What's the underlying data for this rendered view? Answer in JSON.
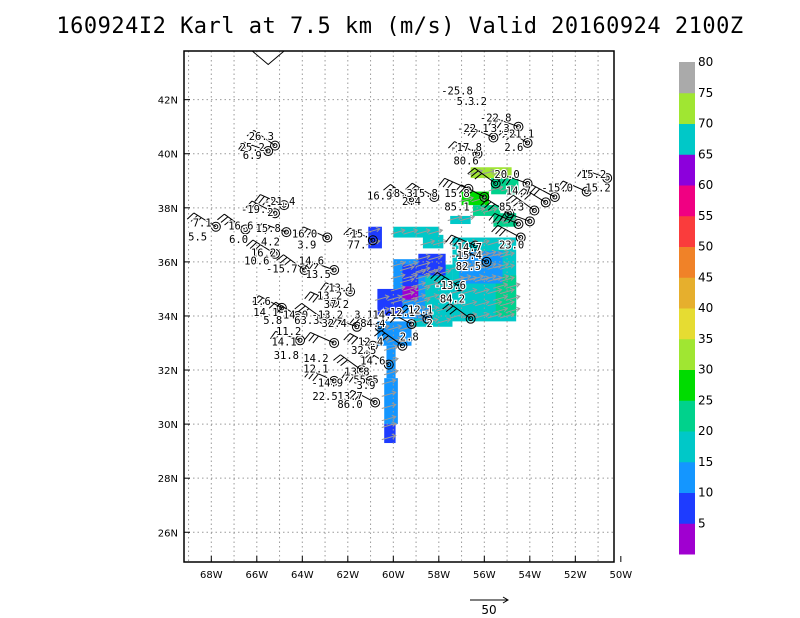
{
  "title": "160924I2 Karl at 7.5 km (m/s) Valid 20160924 2100Z",
  "colors": {
    "grid": "#9a9a9a",
    "obs_arrow": "#9a9a9a",
    "frame": "#000000",
    "colorbar": [
      "#a000d0",
      "#1e3cff",
      "#1496ff",
      "#00c8c8",
      "#00d28c",
      "#00dc00",
      "#a0e632",
      "#e6dc32",
      "#e6af2d",
      "#f08228",
      "#fa3c3c",
      "#f00082",
      "#8c00dc",
      "#00c8c8",
      "#a0e632",
      "#aaaaaa"
    ]
  },
  "chart_data": {
    "type": "heatmap",
    "title": "160924I2 Karl at 7.5 km (m/s) Valid 20160924 2100Z",
    "x_ticks": [
      "68W",
      "66W",
      "64W",
      "62W",
      "60W",
      "58W",
      "56W",
      "54W",
      "52W",
      "50W"
    ],
    "y_ticks": [
      "26N",
      "28N",
      "30N",
      "32N",
      "34N",
      "36N",
      "38N",
      "40N",
      "42N"
    ],
    "xlim": [
      -69.2,
      -50.3
    ],
    "ylim": [
      24.9,
      43.8
    ],
    "grid": true,
    "colorbar_labels": [
      "5",
      "10",
      "15",
      "20",
      "25",
      "30",
      "35",
      "40",
      "45",
      "50",
      "55",
      "60",
      "65",
      "70",
      "75",
      "80"
    ],
    "reference_vector_label": "50",
    "station_labels": [
      {
        "lon": -57.2,
        "lat": 42.2,
        "text": "-25.8"
      },
      {
        "lon": -56.8,
        "lat": 41.8,
        "text": "5.1"
      },
      {
        "lon": -56.3,
        "lat": 41.8,
        "text": "3.2"
      },
      {
        "lon": -55.5,
        "lat": 41.2,
        "text": "-22.8"
      },
      {
        "lon": -56.5,
        "lat": 40.8,
        "text": "-22.1"
      },
      {
        "lon": -55.3,
        "lat": 40.8,
        "text": "3.3"
      },
      {
        "lon": -54.5,
        "lat": 40.6,
        "text": "-21.1"
      },
      {
        "lon": -56.8,
        "lat": 40.1,
        "text": "-17.8"
      },
      {
        "lon": -54.7,
        "lat": 40.1,
        "text": "2.6"
      },
      {
        "lon": -56.8,
        "lat": 39.6,
        "text": "80.6"
      },
      {
        "lon": -55.0,
        "lat": 39.1,
        "text": "20.0"
      },
      {
        "lon": -65.8,
        "lat": 40.5,
        "text": "26.3"
      },
      {
        "lon": -66.2,
        "lat": 40.1,
        "text": "25.2"
      },
      {
        "lon": -66.2,
        "lat": 39.8,
        "text": "6.9"
      },
      {
        "lon": -51.2,
        "lat": 39.1,
        "text": "15.2"
      },
      {
        "lon": -51.0,
        "lat": 38.6,
        "text": "15.2"
      },
      {
        "lon": -52.8,
        "lat": 38.6,
        "text": "-15.0"
      },
      {
        "lon": -54.5,
        "lat": 38.5,
        "text": "14.7"
      },
      {
        "lon": -58.6,
        "lat": 38.4,
        "text": "15.8"
      },
      {
        "lon": -59.7,
        "lat": 38.4,
        "text": "18.3"
      },
      {
        "lon": -60.6,
        "lat": 38.3,
        "text": "16.9"
      },
      {
        "lon": -59.2,
        "lat": 38.1,
        "text": "2.4"
      },
      {
        "lon": -57.2,
        "lat": 38.4,
        "text": "15.8"
      },
      {
        "lon": -57.2,
        "lat": 37.9,
        "text": "85.1"
      },
      {
        "lon": -54.8,
        "lat": 37.9,
        "text": "85.3"
      },
      {
        "lon": -65.0,
        "lat": 38.1,
        "text": "-21.4"
      },
      {
        "lon": -66.0,
        "lat": 37.8,
        "text": "-19.1"
      },
      {
        "lon": -65.4,
        "lat": 37.7,
        "text": "2"
      },
      {
        "lon": -68.4,
        "lat": 37.3,
        "text": "7.1"
      },
      {
        "lon": -68.6,
        "lat": 36.8,
        "text": "5.5"
      },
      {
        "lon": -66.7,
        "lat": 37.2,
        "text": "16.6"
      },
      {
        "lon": -65.5,
        "lat": 37.1,
        "text": "15.8"
      },
      {
        "lon": -66.8,
        "lat": 36.7,
        "text": "6.0"
      },
      {
        "lon": -65.4,
        "lat": 36.6,
        "text": "4.2"
      },
      {
        "lon": -63.9,
        "lat": 36.9,
        "text": "16.0"
      },
      {
        "lon": -63.8,
        "lat": 36.5,
        "text": "3.9"
      },
      {
        "lon": -61.6,
        "lat": 36.9,
        "text": "-15."
      },
      {
        "lon": -61.6,
        "lat": 36.5,
        "text": "77."
      },
      {
        "lon": -54.8,
        "lat": 36.5,
        "text": "23.0"
      },
      {
        "lon": -65.7,
        "lat": 36.2,
        "text": "16.2"
      },
      {
        "lon": -66.0,
        "lat": 35.9,
        "text": "10.6"
      },
      {
        "lon": -64.9,
        "lat": 35.6,
        "text": "-15.7"
      },
      {
        "lon": -63.6,
        "lat": 35.9,
        "text": "14.6"
      },
      {
        "lon": -63.3,
        "lat": 35.4,
        "text": "13.5"
      },
      {
        "lon": -56.8,
        "lat": 36.4,
        "text": "-14.7"
      },
      {
        "lon": -56.8,
        "lat": 36.1,
        "text": "-15.4"
      },
      {
        "lon": -56.7,
        "lat": 35.7,
        "text": "82.5"
      },
      {
        "lon": -57.5,
        "lat": 35.0,
        "text": "-13.6"
      },
      {
        "lon": -57.4,
        "lat": 34.5,
        "text": "84.2"
      },
      {
        "lon": -62.3,
        "lat": 34.9,
        "text": "13.1"
      },
      {
        "lon": -62.8,
        "lat": 34.6,
        "text": "13.2"
      },
      {
        "lon": -62.5,
        "lat": 34.3,
        "text": "37.2"
      },
      {
        "lon": -65.8,
        "lat": 34.4,
        "text": "1.6"
      },
      {
        "lon": -65.6,
        "lat": 34.0,
        "text": "14.1"
      },
      {
        "lon": -64.3,
        "lat": 33.9,
        "text": "14.0"
      },
      {
        "lon": -65.3,
        "lat": 33.7,
        "text": "5.8"
      },
      {
        "lon": -63.8,
        "lat": 33.7,
        "text": "63.3"
      },
      {
        "lon": -62.9,
        "lat": 33.9,
        "text": "-13.2"
      },
      {
        "lon": -62.6,
        "lat": 33.6,
        "text": "32.4"
      },
      {
        "lon": -61.3,
        "lat": 33.9,
        "text": "3.1"
      },
      {
        "lon": -60.9,
        "lat": 33.6,
        "text": "84.4"
      },
      {
        "lon": -60.5,
        "lat": 33.9,
        "text": "14."
      },
      {
        "lon": -59.6,
        "lat": 34.0,
        "text": "12.1"
      },
      {
        "lon": -58.8,
        "lat": 34.1,
        "text": "12.1"
      },
      {
        "lon": -58.4,
        "lat": 33.6,
        "text": "2"
      },
      {
        "lon": -59.3,
        "lat": 33.1,
        "text": "2.8"
      },
      {
        "lon": -64.6,
        "lat": 33.3,
        "text": "11.2"
      },
      {
        "lon": -64.8,
        "lat": 32.9,
        "text": "14.1"
      },
      {
        "lon": -64.7,
        "lat": 32.4,
        "text": "31.8"
      },
      {
        "lon": -61.0,
        "lat": 32.9,
        "text": "12.4"
      },
      {
        "lon": -61.3,
        "lat": 32.6,
        "text": "32.5"
      },
      {
        "lon": -63.4,
        "lat": 32.3,
        "text": "14.2"
      },
      {
        "lon": -60.9,
        "lat": 32.2,
        "text": "14.6"
      },
      {
        "lon": -63.4,
        "lat": 31.9,
        "text": "12.1"
      },
      {
        "lon": -61.6,
        "lat": 31.8,
        "text": "13.8"
      },
      {
        "lon": -61.2,
        "lat": 31.5,
        "text": "55.5"
      },
      {
        "lon": -62.9,
        "lat": 31.4,
        "text": "-14.9"
      },
      {
        "lon": -61.2,
        "lat": 31.3,
        "text": "3.9"
      },
      {
        "lon": -63.0,
        "lat": 30.9,
        "text": "22.5"
      },
      {
        "lon": -61.9,
        "lat": 30.9,
        "text": "13.7"
      },
      {
        "lon": -61.9,
        "lat": 30.6,
        "text": "86.0"
      }
    ],
    "stations": [
      {
        "lon": -54.5,
        "lat": 41.0
      },
      {
        "lon": -55.6,
        "lat": 40.6
      },
      {
        "lon": -56.3,
        "lat": 40.0
      },
      {
        "lon": -54.1,
        "lat": 40.4
      },
      {
        "lon": -55.5,
        "lat": 38.9
      },
      {
        "lon": -54.1,
        "lat": 38.9
      },
      {
        "lon": -56.7,
        "lat": 38.7
      },
      {
        "lon": -56.0,
        "lat": 38.4
      },
      {
        "lon": -58.2,
        "lat": 38.4
      },
      {
        "lon": -59.2,
        "lat": 38.3
      },
      {
        "lon": -50.6,
        "lat": 39.1
      },
      {
        "lon": -51.5,
        "lat": 38.6
      },
      {
        "lon": -52.9,
        "lat": 38.4
      },
      {
        "lon": -53.3,
        "lat": 38.2
      },
      {
        "lon": -53.8,
        "lat": 37.9
      },
      {
        "lon": -54.0,
        "lat": 37.5
      },
      {
        "lon": -54.5,
        "lat": 37.4
      },
      {
        "lon": -54.4,
        "lat": 36.9
      },
      {
        "lon": -54.9,
        "lat": 37.8
      },
      {
        "lon": -65.2,
        "lat": 40.3
      },
      {
        "lon": -65.5,
        "lat": 40.1
      },
      {
        "lon": -64.8,
        "lat": 38.1
      },
      {
        "lon": -65.2,
        "lat": 37.8
      },
      {
        "lon": -67.8,
        "lat": 37.3
      },
      {
        "lon": -66.5,
        "lat": 37.2
      },
      {
        "lon": -64.7,
        "lat": 37.1
      },
      {
        "lon": -62.9,
        "lat": 36.9
      },
      {
        "lon": -60.9,
        "lat": 36.8
      },
      {
        "lon": -65.2,
        "lat": 36.3
      },
      {
        "lon": -63.9,
        "lat": 35.7
      },
      {
        "lon": -62.6,
        "lat": 35.7
      },
      {
        "lon": -56.4,
        "lat": 36.6
      },
      {
        "lon": -55.9,
        "lat": 36.0
      },
      {
        "lon": -57.1,
        "lat": 35.1
      },
      {
        "lon": -56.6,
        "lat": 33.9
      },
      {
        "lon": -61.9,
        "lat": 34.9
      },
      {
        "lon": -62.6,
        "lat": 34.5
      },
      {
        "lon": -64.9,
        "lat": 34.3
      },
      {
        "lon": -64.2,
        "lat": 34.0
      },
      {
        "lon": -63.1,
        "lat": 33.9
      },
      {
        "lon": -61.6,
        "lat": 33.6
      },
      {
        "lon": -60.6,
        "lat": 33.6
      },
      {
        "lon": -59.2,
        "lat": 33.7
      },
      {
        "lon": -58.5,
        "lat": 33.9
      },
      {
        "lon": -59.6,
        "lat": 32.9
      },
      {
        "lon": -64.1,
        "lat": 33.1
      },
      {
        "lon": -62.6,
        "lat": 33.0
      },
      {
        "lon": -60.9,
        "lat": 32.9
      },
      {
        "lon": -60.2,
        "lat": 32.2
      },
      {
        "lon": -61.4,
        "lat": 32.0
      },
      {
        "lon": -61.0,
        "lat": 31.6
      },
      {
        "lon": -62.6,
        "lat": 31.6
      },
      {
        "lon": -60.8,
        "lat": 30.8
      }
    ],
    "wind_field": [
      {
        "lon0": -61.1,
        "lon1": -60.5,
        "lat0": 36.5,
        "lat1": 37.3,
        "speed": 10
      },
      {
        "lon0": -60.0,
        "lon1": -58.0,
        "lat0": 36.9,
        "lat1": 37.3,
        "speed": 20
      },
      {
        "lon0": -58.7,
        "lon1": -57.8,
        "lat0": 36.5,
        "lat1": 37.0,
        "speed": 20
      },
      {
        "lon0": -57.4,
        "lon1": -54.6,
        "lat0": 33.8,
        "lat1": 36.9,
        "speed": 20
      },
      {
        "lon0": -59.1,
        "lon1": -57.4,
        "lat0": 33.6,
        "lat1": 35.9,
        "speed": 20
      },
      {
        "lon0": -55.5,
        "lon1": -54.6,
        "lat0": 34.0,
        "lat1": 35.5,
        "speed": 25
      },
      {
        "lon0": -57.1,
        "lon1": -55.2,
        "lat0": 35.2,
        "lat1": 36.4,
        "speed": 15
      },
      {
        "lon0": -57.5,
        "lon1": -56.6,
        "lat0": 37.4,
        "lat1": 37.7,
        "speed": 20
      },
      {
        "lon0": -57.0,
        "lon1": -55.8,
        "lat0": 38.1,
        "lat1": 38.6,
        "speed": 30
      },
      {
        "lon0": -55.7,
        "lon1": -54.5,
        "lat0": 38.5,
        "lat1": 39.1,
        "speed": 25
      },
      {
        "lon0": -56.6,
        "lon1": -54.8,
        "lat0": 39.1,
        "lat1": 39.5,
        "speed": 35
      },
      {
        "lon0": -56.5,
        "lon1": -55.3,
        "lat0": 37.7,
        "lat1": 38.1,
        "speed": 25
      },
      {
        "lon0": -55.6,
        "lon1": -54.6,
        "lat0": 37.3,
        "lat1": 37.8,
        "speed": 25
      },
      {
        "lon0": -60.0,
        "lon1": -58.6,
        "lat0": 33.9,
        "lat1": 36.1,
        "speed": 15
      },
      {
        "lon0": -60.7,
        "lon1": -59.6,
        "lat0": 34.0,
        "lat1": 35.0,
        "speed": 10
      },
      {
        "lon0": -59.6,
        "lon1": -58.9,
        "lat0": 35.1,
        "lat1": 35.9,
        "speed": 10
      },
      {
        "lon0": -58.9,
        "lon1": -57.7,
        "lat0": 35.5,
        "lat1": 36.3,
        "speed": 10
      },
      {
        "lon0": -59.6,
        "lon1": -58.9,
        "lat0": 34.6,
        "lat1": 35.1,
        "speed": 5
      },
      {
        "lon0": -58.8,
        "lon1": -58.3,
        "lat0": 33.8,
        "lat1": 34.3,
        "speed": 15
      },
      {
        "lon0": -60.7,
        "lon1": -59.2,
        "lat0": 32.9,
        "lat1": 33.8,
        "speed": 15
      },
      {
        "lon0": -60.3,
        "lon1": -59.9,
        "lat0": 31.7,
        "lat1": 32.9,
        "speed": 15
      },
      {
        "lon0": -60.4,
        "lon1": -59.8,
        "lat0": 30.0,
        "lat1": 31.7,
        "speed": 15
      },
      {
        "lon0": -60.4,
        "lon1": -59.9,
        "lat0": 29.3,
        "lat1": 30.0,
        "speed": 10
      }
    ]
  }
}
